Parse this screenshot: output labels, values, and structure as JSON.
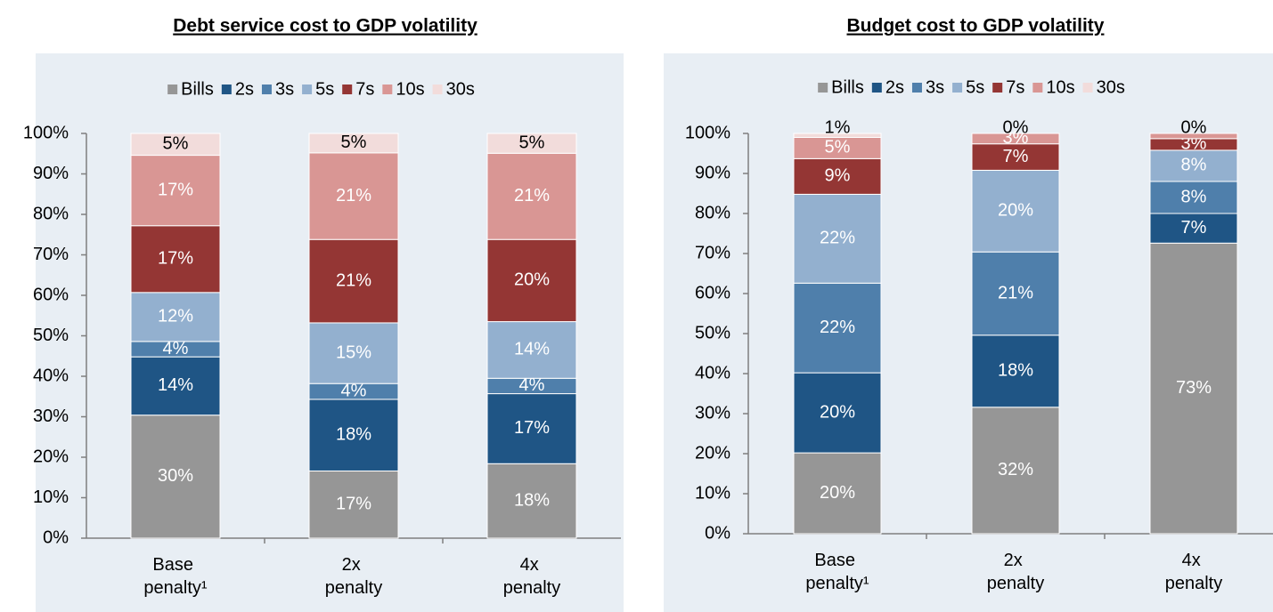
{
  "chart_data": [
    {
      "type": "stacked_bar",
      "title": "Debt service cost to GDP volatility",
      "categories": [
        "Base penalty¹",
        "2x penalty",
        "4x penalty"
      ],
      "ylim": [
        0,
        100
      ],
      "yticks": [
        {
          "value": 0,
          "label": "0%"
        },
        {
          "value": 10,
          "label": "10%"
        },
        {
          "value": 20,
          "label": "20%"
        },
        {
          "value": 30,
          "label": "30%"
        },
        {
          "value": 40,
          "label": "40%"
        },
        {
          "value": 50,
          "label": "50%"
        },
        {
          "value": 60,
          "label": "60%"
        },
        {
          "value": 70,
          "label": "70%"
        },
        {
          "value": 80,
          "label": "80%"
        },
        {
          "value": 90,
          "label": "90%"
        },
        {
          "value": 100,
          "label": "100%"
        }
      ],
      "legend": "top",
      "series": [
        {
          "name": "Bills",
          "color": "#969696",
          "values": [
            30.4,
            16.6,
            18.4
          ],
          "value_labels": [
            "30%",
            "17%",
            "18%"
          ]
        },
        {
          "name": "2s",
          "color": "#1f5585",
          "values": [
            14.4,
            17.7,
            17.3
          ],
          "value_labels": [
            "14%",
            "18%",
            "17%"
          ]
        },
        {
          "name": "3s",
          "color": "#4f7fab",
          "values": [
            3.8,
            3.9,
            3.8
          ],
          "value_labels": [
            "4%",
            "4%",
            "4%"
          ]
        },
        {
          "name": "5s",
          "color": "#93b0cf",
          "values": [
            12.1,
            15.0,
            14.0
          ],
          "value_labels": [
            "12%",
            "15%",
            "14%"
          ]
        },
        {
          "name": "7s",
          "color": "#943634",
          "values": [
            16.5,
            20.6,
            20.3
          ],
          "value_labels": [
            "17%",
            "21%",
            "20%"
          ]
        },
        {
          "name": "10s",
          "color": "#d99694",
          "values": [
            17.4,
            21.4,
            21.3
          ],
          "value_labels": [
            "17%",
            "21%",
            "21%"
          ]
        },
        {
          "name": "30s",
          "color": "#f2dcdb",
          "values": [
            5.4,
            4.8,
            4.9
          ],
          "value_labels": [
            "5%",
            "5%",
            "5%"
          ]
        }
      ]
    },
    {
      "type": "stacked_bar",
      "title": "Budget cost to GDP volatility",
      "categories": [
        "Base penalty¹",
        "2x penalty",
        "4x penalty"
      ],
      "ylim": [
        0,
        100
      ],
      "yticks": [
        {
          "value": 0,
          "label": "0%"
        },
        {
          "value": 10,
          "label": "10%"
        },
        {
          "value": 20,
          "label": "20%"
        },
        {
          "value": 30,
          "label": "30%"
        },
        {
          "value": 40,
          "label": "40%"
        },
        {
          "value": 50,
          "label": "50%"
        },
        {
          "value": 60,
          "label": "60%"
        },
        {
          "value": 70,
          "label": "70%"
        },
        {
          "value": 80,
          "label": "80%"
        },
        {
          "value": 90,
          "label": "90%"
        },
        {
          "value": 100,
          "label": "100%"
        }
      ],
      "legend": "top",
      "series": [
        {
          "name": "Bills",
          "color": "#969696",
          "values": [
            20.2,
            31.6,
            72.6
          ],
          "value_labels": [
            "20%",
            "32%",
            "73%"
          ]
        },
        {
          "name": "2s",
          "color": "#1f5585",
          "values": [
            20.0,
            18.0,
            7.4
          ],
          "value_labels": [
            "20%",
            "18%",
            "7%"
          ]
        },
        {
          "name": "3s",
          "color": "#4f7fab",
          "values": [
            22.4,
            20.8,
            8.0
          ],
          "value_labels": [
            "22%",
            "21%",
            "8%"
          ]
        },
        {
          "name": "5s",
          "color": "#93b0cf",
          "values": [
            22.2,
            20.4,
            7.8
          ],
          "value_labels": [
            "22%",
            "20%",
            "8%"
          ]
        },
        {
          "name": "7s",
          "color": "#943634",
          "values": [
            8.9,
            6.6,
            2.9
          ],
          "value_labels": [
            "9%",
            "7%",
            "3%"
          ]
        },
        {
          "name": "10s",
          "color": "#d99694",
          "values": [
            5.3,
            2.6,
            1.3
          ],
          "value_labels": [
            "5%",
            "3%",
            null
          ]
        },
        {
          "name": "30s",
          "color": "#f2dcdb",
          "values": [
            1.0,
            0,
            0
          ],
          "value_labels": [
            "1%",
            "0%",
            "0%"
          ]
        }
      ]
    }
  ]
}
